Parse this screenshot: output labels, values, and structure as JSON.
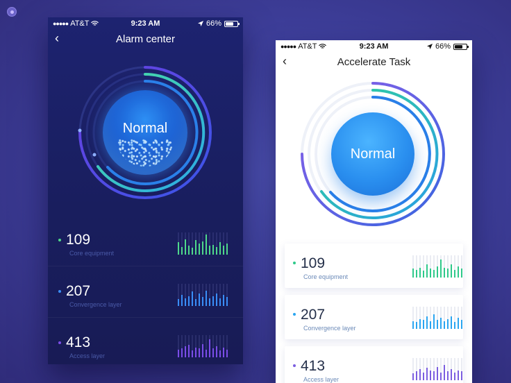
{
  "status_bar": {
    "signal": "●●●●●",
    "carrier": "AT&T",
    "time": "9:23 AM",
    "battery": "66%"
  },
  "dark_screen": {
    "title": "Alarm center",
    "back": "‹",
    "status_text": "Normal",
    "metrics": [
      {
        "value": "109",
        "label": "Core equipment",
        "color": "#4fd98b",
        "bars": [
          0.55,
          0.35,
          0.7,
          0.4,
          0.3,
          0.65,
          0.5,
          0.6,
          0.9,
          0.4,
          0.45,
          0.35,
          0.55,
          0.4,
          0.5
        ]
      },
      {
        "value": "207",
        "label": "Convergence layer",
        "color": "#3a8ef8",
        "bars": [
          0.3,
          0.5,
          0.35,
          0.45,
          0.65,
          0.3,
          0.55,
          0.4,
          0.7,
          0.35,
          0.45,
          0.55,
          0.35,
          0.5,
          0.4
        ]
      },
      {
        "value": "413",
        "label": "Access layer",
        "color": "#7b4de8",
        "bars": [
          0.35,
          0.4,
          0.5,
          0.55,
          0.3,
          0.45,
          0.4,
          0.6,
          0.35,
          0.8,
          0.4,
          0.5,
          0.3,
          0.45,
          0.35
        ]
      }
    ]
  },
  "light_screen": {
    "title": "Accelerate Task",
    "back": "‹",
    "status_text": "Normal",
    "metrics": [
      {
        "value": "109",
        "label": "Core equipment",
        "color": "#2ec98a",
        "bars": [
          0.4,
          0.35,
          0.45,
          0.3,
          0.6,
          0.4,
          0.35,
          0.5,
          0.8,
          0.45,
          0.4,
          0.6,
          0.35,
          0.5,
          0.4
        ]
      },
      {
        "value": "207",
        "label": "Convergence layer",
        "color": "#2aa5f0",
        "bars": [
          0.35,
          0.3,
          0.45,
          0.4,
          0.55,
          0.35,
          0.65,
          0.4,
          0.5,
          0.35,
          0.45,
          0.55,
          0.3,
          0.5,
          0.4
        ]
      },
      {
        "value": "413",
        "label": "Access layer",
        "color": "#7b5ee0",
        "bars": [
          0.3,
          0.4,
          0.5,
          0.35,
          0.55,
          0.45,
          0.4,
          0.6,
          0.35,
          0.7,
          0.4,
          0.5,
          0.35,
          0.45,
          0.4
        ]
      }
    ]
  }
}
